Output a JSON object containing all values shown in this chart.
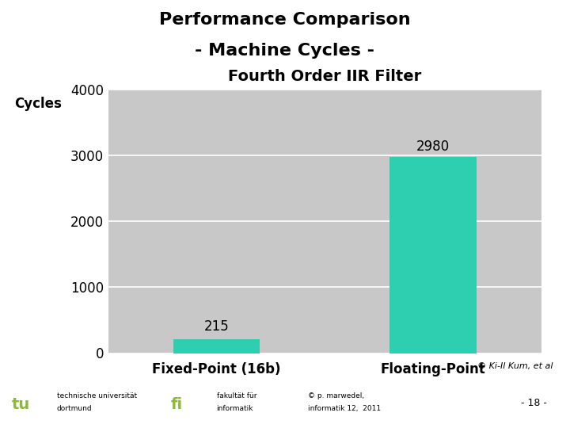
{
  "title_line1": "Performance Comparison",
  "title_line2": "- Machine Cycles -",
  "chart_title": "Fourth Order IIR Filter",
  "ylabel": "Cycles",
  "categories": [
    "Fixed-Point (16b)",
    "Floating-Point"
  ],
  "values": [
    215,
    2980
  ],
  "bar_color": "#2ecfb0",
  "plot_bg_color": "#c8c8c8",
  "ylim": [
    0,
    4000
  ],
  "yticks": [
    0,
    1000,
    2000,
    3000,
    4000
  ],
  "value_labels": [
    "215",
    "2980"
  ],
  "title_fontsize": 16,
  "chart_title_fontsize": 14,
  "ylabel_fontsize": 12,
  "tick_fontsize": 12,
  "xlabel_fontsize": 12,
  "value_label_fontsize": 12,
  "bg_color": "#ffffff",
  "title_color": "#000000",
  "olive_line_color": "#8db83a",
  "footer_green_color": "#8db83a",
  "copyright_text": "© Ki-Il Kum, et al",
  "footer_left1": "technische universität",
  "footer_left2": "dortmund",
  "footer_mid1": "fakultät für",
  "footer_mid2": "informatik",
  "footer_right1": "© p. marwedel,",
  "footer_right2": "informatik 12,  2011",
  "footer_page": "- 18 -"
}
